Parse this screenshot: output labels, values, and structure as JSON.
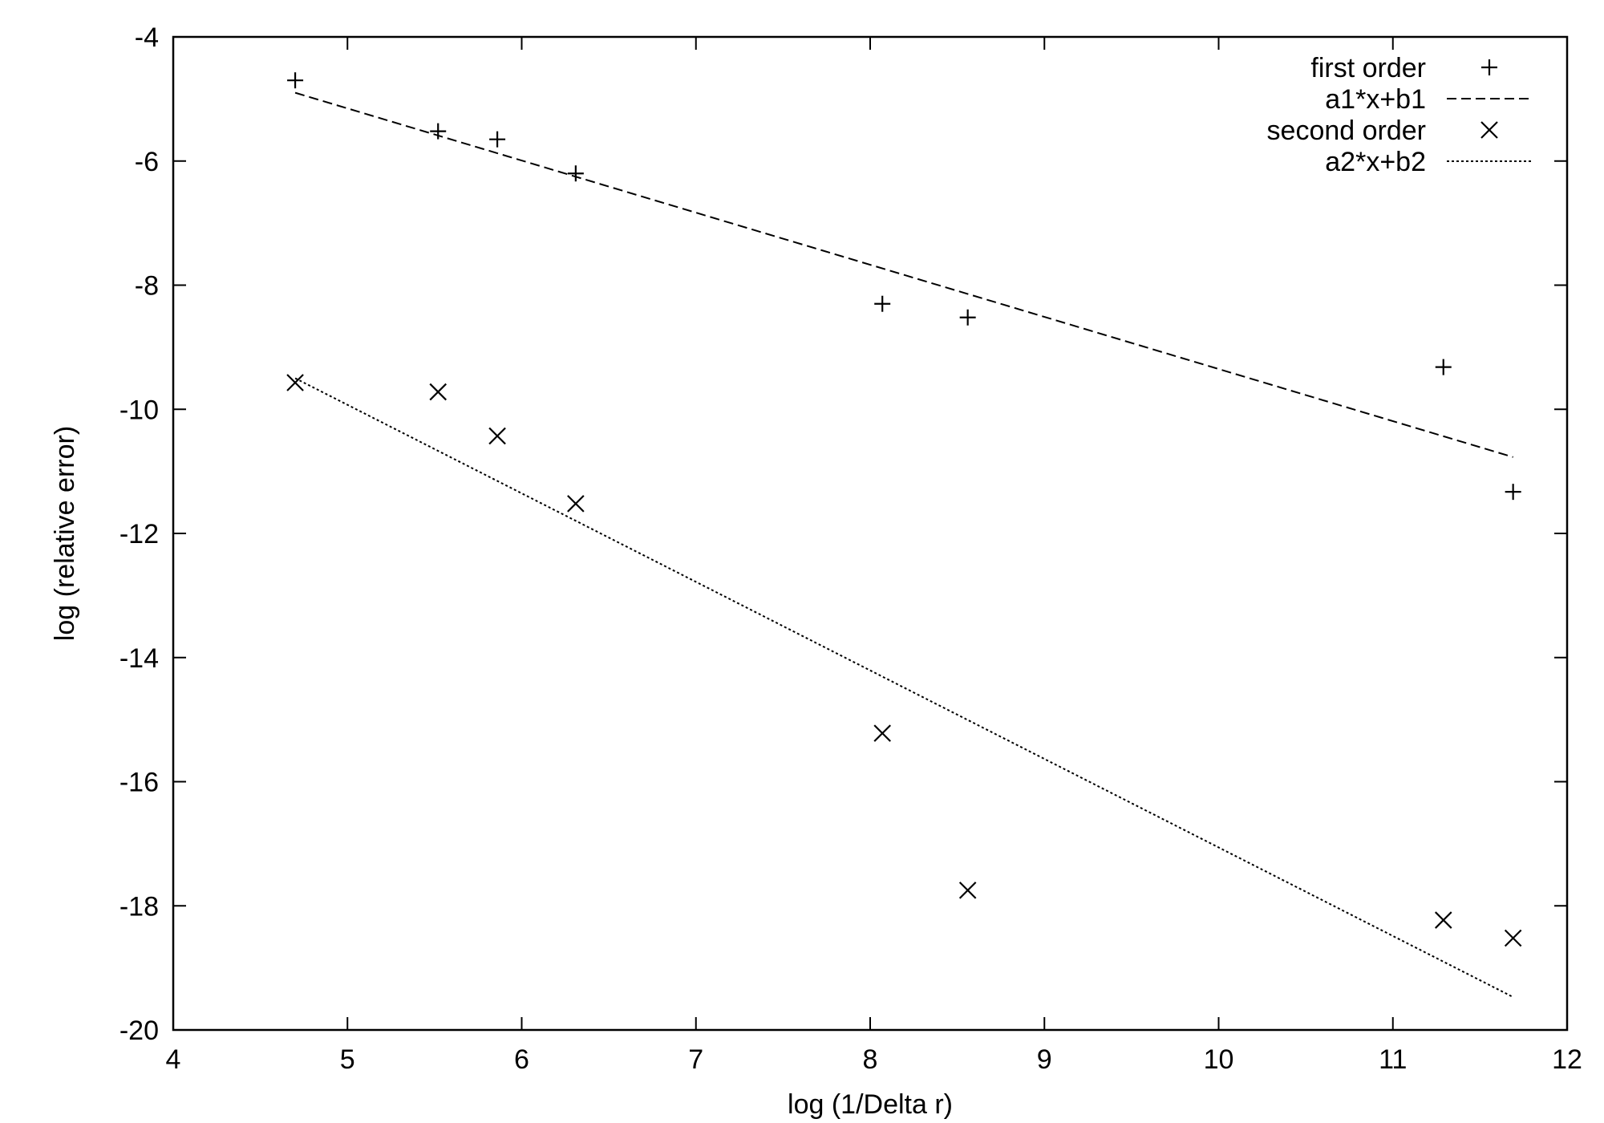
{
  "chart_data": {
    "type": "scatter",
    "title": "",
    "xlabel": "log (1/Delta r)",
    "ylabel": "log (relative error)",
    "xlim": [
      4,
      12
    ],
    "ylim": [
      -20,
      -4
    ],
    "xticks": [
      4,
      5,
      6,
      7,
      8,
      9,
      10,
      11,
      12
    ],
    "yticks": [
      -4,
      -6,
      -8,
      -10,
      -12,
      -14,
      -16,
      -18,
      -20
    ],
    "grid": false,
    "legend_position": "top-right",
    "series": [
      {
        "name": "first order",
        "kind": "points",
        "marker": "plus",
        "x": [
          4.7,
          5.52,
          5.86,
          6.31,
          8.07,
          8.56,
          11.29,
          11.69
        ],
        "y": [
          -4.7,
          -5.52,
          -5.65,
          -6.2,
          -8.3,
          -8.52,
          -9.32,
          -11.33
        ]
      },
      {
        "name": "a1*x+b1",
        "kind": "line",
        "dash": "dashed",
        "x": [
          4.7,
          11.69
        ],
        "y": [
          -4.9,
          -10.77
        ]
      },
      {
        "name": "second order",
        "kind": "points",
        "marker": "cross",
        "x": [
          4.7,
          5.52,
          5.86,
          6.31,
          8.07,
          8.56,
          11.29,
          11.69
        ],
        "y": [
          -9.57,
          -9.72,
          -10.43,
          -11.52,
          -15.22,
          -17.75,
          -18.23,
          -18.52
        ]
      },
      {
        "name": "a2*x+b2",
        "kind": "line",
        "dash": "dotted",
        "x": [
          4.7,
          11.69
        ],
        "y": [
          -9.5,
          -19.47
        ]
      }
    ]
  }
}
